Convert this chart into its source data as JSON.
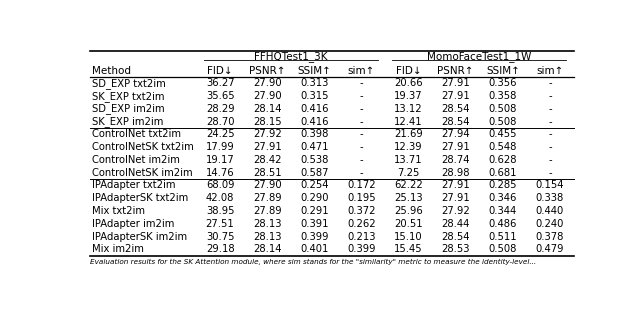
{
  "col_groups": [
    {
      "label": "FFHQTest1_3K"
    },
    {
      "label": "MomoFaceTest1_1W"
    }
  ],
  "methods": [
    "SD_EXP txt2im",
    "SK_EXP txt2im",
    "SD_EXP im2im",
    "SK_EXP im2im",
    "ControlNet txt2im",
    "ControlNetSK txt2im",
    "ControlNet im2im",
    "ControlNetSK im2im",
    "IPAdapter txt2im",
    "IPAdapterSK txt2im",
    "Mix txt2im",
    "IPAdapter im2im",
    "IPAdapterSK im2im",
    "Mix im2im"
  ],
  "col_headers": [
    "FID↓",
    "PSNR↑",
    "SSIM↑",
    "sim↑",
    "FID↓",
    "PSNR↑",
    "SSIM↑",
    "sim↑"
  ],
  "group_separators_after": [
    3,
    7
  ],
  "data": [
    [
      "36.27",
      "27.90",
      "0.313",
      "-",
      "20.66",
      "27.91",
      "0.356",
      "-"
    ],
    [
      "35.65",
      "27.90",
      "0.315",
      "-",
      "19.37",
      "27.91",
      "0.358",
      "-"
    ],
    [
      "28.29",
      "28.14",
      "0.416",
      "-",
      "13.12",
      "28.54",
      "0.508",
      "-"
    ],
    [
      "28.70",
      "28.15",
      "0.416",
      "-",
      "12.41",
      "28.54",
      "0.508",
      "-"
    ],
    [
      "24.25",
      "27.92",
      "0.398",
      "-",
      "21.69",
      "27.94",
      "0.455",
      "-"
    ],
    [
      "17.99",
      "27.91",
      "0.471",
      "-",
      "12.39",
      "27.91",
      "0.548",
      "-"
    ],
    [
      "19.17",
      "28.42",
      "0.538",
      "-",
      "13.71",
      "28.74",
      "0.628",
      "-"
    ],
    [
      "14.76",
      "28.51",
      "0.587",
      "-",
      "7.25",
      "28.98",
      "0.681",
      "-"
    ],
    [
      "68.09",
      "27.90",
      "0.254",
      "0.172",
      "62.22",
      "27.91",
      "0.285",
      "0.154"
    ],
    [
      "42.08",
      "27.89",
      "0.290",
      "0.195",
      "25.13",
      "27.91",
      "0.346",
      "0.338"
    ],
    [
      "38.95",
      "27.89",
      "0.291",
      "0.372",
      "25.96",
      "27.92",
      "0.344",
      "0.440"
    ],
    [
      "27.51",
      "28.13",
      "0.391",
      "0.262",
      "20.51",
      "28.44",
      "0.486",
      "0.240"
    ],
    [
      "30.75",
      "28.13",
      "0.399",
      "0.213",
      "15.10",
      "28.54",
      "0.511",
      "0.378"
    ],
    [
      "29.18",
      "28.14",
      "0.401",
      "0.399",
      "15.45",
      "28.53",
      "0.508",
      "0.479"
    ]
  ],
  "footer": "Evaluation results for the SK Attention module, where sim stands for the \"similarity\" metric to measure the identity-level...",
  "bg_color": "#ffffff",
  "text_color": "#000000",
  "font_size": 7.2,
  "header_font_size": 7.5
}
